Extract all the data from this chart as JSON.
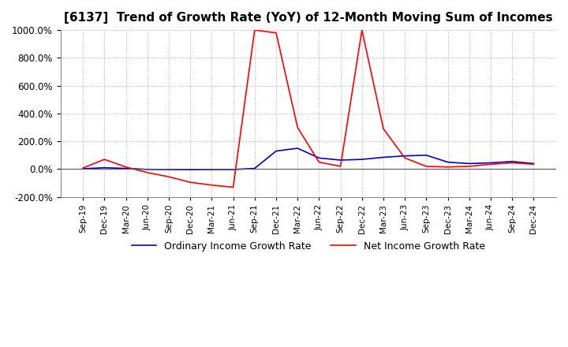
{
  "title": "[6137]  Trend of Growth Rate (YoY) of 12-Month Moving Sum of Incomes",
  "title_fontsize": 11,
  "ylim": [
    -200,
    1000
  ],
  "yticks": [
    -200,
    0,
    200,
    400,
    600,
    800,
    1000
  ],
  "background_color": "#ffffff",
  "grid_color": "#aaaaaa",
  "ordinary_color": "#0000cc",
  "net_color": "#ff0000",
  "x_labels": [
    "Sep-19",
    "Dec-19",
    "Mar-20",
    "Jun-20",
    "Sep-20",
    "Dec-20",
    "Mar-21",
    "Jun-21",
    "Sep-21",
    "Dec-21",
    "Mar-22",
    "Jun-22",
    "Sep-22",
    "Dec-22",
    "Mar-23",
    "Jun-23",
    "Sep-23",
    "Dec-23",
    "Mar-24",
    "Jun-24",
    "Sep-24",
    "Dec-24"
  ],
  "ordinary_growth": [
    3,
    10,
    5,
    -2,
    -3,
    -4,
    -3,
    -3,
    5,
    130,
    150,
    80,
    65,
    70,
    85,
    95,
    100,
    50,
    40,
    45,
    55,
    40
  ],
  "net_growth": [
    8,
    70,
    15,
    -25,
    -55,
    -95,
    -115,
    -130,
    1000,
    980,
    300,
    50,
    20,
    1000,
    290,
    80,
    20,
    15,
    20,
    35,
    45,
    35
  ],
  "legend_ordinary": "Ordinary Income Growth Rate",
  "legend_net": "Net Income Growth Rate"
}
